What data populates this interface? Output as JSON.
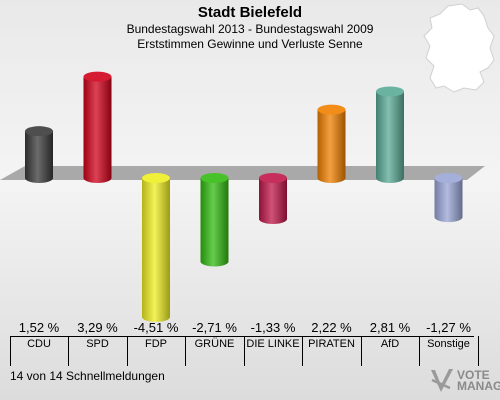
{
  "header": {
    "title": "Stadt Bielefeld",
    "subtitle1": "Bundestagswahl 2013 - Bundestagswahl 2009",
    "subtitle2": "Erststimmen Gewinne und Verluste Senne"
  },
  "footer": {
    "text": "14 von 14 Schnellmeldungen"
  },
  "logo": {
    "line1": "VOTE",
    "line2": "MANAGER"
  },
  "chart_data": {
    "type": "bar",
    "title": "Stadt Bielefeld",
    "subtitle": "Bundestagswahl 2013 - Bundestagswahl 2009 / Erststimmen Gewinne und Verluste Senne",
    "categories": [
      "CDU",
      "SPD",
      "FDP",
      "GRÜNE",
      "DIE LINKE",
      "PIRATEN",
      "AfD",
      "Sonstige"
    ],
    "values": [
      1.52,
      3.29,
      -4.51,
      -2.71,
      -1.33,
      2.22,
      2.81,
      -1.27
    ],
    "labels": [
      "1,52 %",
      "3,29 %",
      "-4,51 %",
      "-2,71 %",
      "-1,33 %",
      "2,22 %",
      "2,81 %",
      "-1,27 %"
    ],
    "colors": [
      "#3a3a3a",
      "#d0021b",
      "#eeee22",
      "#33bb11",
      "#c0174a",
      "#f08000",
      "#5aaa96",
      "#9aa6d6"
    ],
    "ylabel": "",
    "xlabel": "",
    "legend": "none",
    "grid": false
  }
}
